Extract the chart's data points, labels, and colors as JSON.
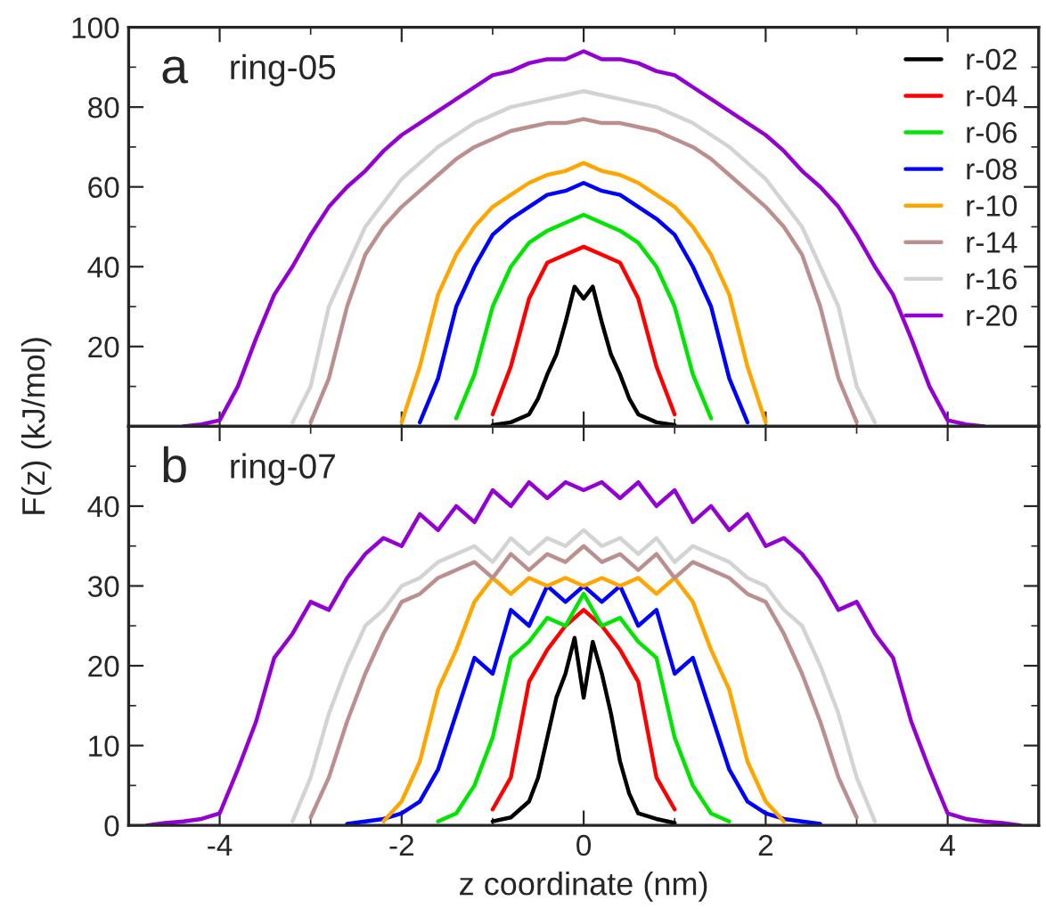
{
  "chart_data": [
    {
      "type": "line",
      "annotations": [
        "a",
        "ring-05"
      ],
      "ylabel": "F(z) (kJ/mol)",
      "legend": "top right",
      "tick_labels": "y",
      "grid": false,
      "xlim": [
        -5,
        5
      ],
      "ylim": [
        0,
        100
      ],
      "xticks": [
        -4,
        {
          "value": -3,
          "label": null
        },
        -2,
        {
          "value": -1,
          "label": null
        },
        0,
        {
          "value": 1,
          "label": null
        },
        2,
        {
          "value": 3,
          "label": null
        },
        4
      ],
      "yticks": [
        {
          "value": 10,
          "label": null
        },
        20,
        {
          "value": 30,
          "label": null
        },
        40,
        {
          "value": 50,
          "label": null
        },
        60,
        {
          "value": 70,
          "label": null
        },
        80,
        {
          "value": 90,
          "label": null
        },
        100
      ],
      "x": [
        -4.4,
        -4.2,
        -4.0,
        -3.8,
        -3.6,
        -3.4,
        -3.2,
        -3.0,
        -2.8,
        -2.6,
        -2.4,
        -2.2,
        -2.0,
        -1.8,
        -1.6,
        -1.4,
        -1.2,
        -1.0,
        -0.8,
        -0.6,
        -0.4,
        -0.2,
        0,
        0.2,
        0.4,
        0.6,
        0.8,
        1.0,
        1.2,
        1.4,
        1.6,
        1.8,
        2.0,
        2.2,
        2.4,
        2.6,
        2.8,
        3.0,
        3.2,
        3.4,
        3.6,
        3.8,
        4.0,
        4.2,
        4.4
      ],
      "series": [
        {
          "name": "r-02",
          "color": "#000000",
          "x": [
            -1.0,
            -0.8,
            -0.6,
            -0.5,
            -0.4,
            -0.3,
            -0.2,
            -0.1,
            0,
            0.1,
            0.2,
            0.3,
            0.4,
            0.5,
            0.6,
            0.8,
            1.0
          ],
          "values": [
            0.3,
            1,
            3,
            7,
            13,
            18,
            26,
            35,
            32,
            35,
            26,
            18,
            13,
            7,
            3,
            1,
            0.3
          ]
        },
        {
          "name": "r-04",
          "color": "#ff0000",
          "values": [
            null,
            null,
            null,
            null,
            null,
            null,
            null,
            null,
            null,
            null,
            null,
            null,
            null,
            null,
            null,
            null,
            null,
            3,
            15,
            32,
            41,
            43,
            45,
            43,
            41,
            32,
            15,
            3,
            null,
            null,
            null,
            null,
            null,
            null,
            null,
            null,
            null,
            null,
            null,
            null,
            null,
            null,
            null,
            null,
            null
          ]
        },
        {
          "name": "r-06",
          "color": "#00e600",
          "values": [
            null,
            null,
            null,
            null,
            null,
            null,
            null,
            null,
            null,
            null,
            null,
            null,
            null,
            null,
            null,
            2,
            13,
            30,
            40,
            46,
            49,
            51,
            53,
            51,
            49,
            46,
            40,
            30,
            13,
            2,
            null,
            null,
            null,
            null,
            null,
            null,
            null,
            null,
            null,
            null,
            null,
            null,
            null,
            null,
            null
          ]
        },
        {
          "name": "r-08",
          "color": "#0000ff",
          "values": [
            null,
            null,
            null,
            null,
            null,
            null,
            null,
            null,
            null,
            null,
            null,
            null,
            null,
            1,
            12,
            30,
            40,
            48,
            52,
            55,
            58,
            59,
            61,
            59,
            58,
            55,
            52,
            48,
            40,
            30,
            12,
            1,
            null,
            null,
            null,
            null,
            null,
            null,
            null,
            null,
            null,
            null,
            null,
            null,
            null
          ]
        },
        {
          "name": "r-10",
          "color": "#ffa500",
          "values": [
            null,
            null,
            null,
            null,
            null,
            null,
            null,
            null,
            null,
            null,
            null,
            null,
            1,
            15,
            33,
            43,
            50,
            55,
            58,
            61,
            63,
            64,
            66,
            64,
            63,
            61,
            58,
            55,
            50,
            43,
            33,
            15,
            1,
            null,
            null,
            null,
            null,
            null,
            null,
            null,
            null,
            null,
            null,
            null,
            null
          ]
        },
        {
          "name": "r-14",
          "color": "#bc8f8f",
          "values": [
            null,
            null,
            null,
            null,
            null,
            null,
            null,
            1,
            12,
            30,
            43,
            50,
            55,
            59,
            63,
            67,
            70,
            72,
            74,
            75,
            76,
            76,
            77,
            76,
            76,
            75,
            74,
            72,
            70,
            67,
            63,
            59,
            55,
            50,
            43,
            30,
            12,
            1,
            null,
            null,
            null,
            null,
            null,
            null,
            null
          ]
        },
        {
          "name": "r-16",
          "color": "#d3d3d3",
          "values": [
            null,
            null,
            null,
            null,
            null,
            null,
            1,
            10,
            30,
            40,
            50,
            56,
            62,
            66,
            70,
            73,
            76,
            78,
            80,
            81,
            82,
            83,
            84,
            83,
            82,
            81,
            80,
            78,
            76,
            73,
            70,
            66,
            62,
            56,
            50,
            40,
            30,
            10,
            1,
            null,
            null,
            null,
            null,
            null,
            null
          ]
        },
        {
          "name": "r-20",
          "color": "#9400d3",
          "values": [
            0,
            0.5,
            1.5,
            10,
            22,
            33,
            40,
            48,
            55,
            60,
            64,
            69,
            73,
            76,
            79,
            82,
            85,
            88,
            89,
            91,
            92,
            92,
            94,
            92,
            92,
            91,
            89,
            88,
            85,
            82,
            79,
            76,
            73,
            69,
            64,
            60,
            55,
            48,
            40,
            33,
            22,
            10,
            1.5,
            0.5,
            0
          ]
        }
      ]
    },
    {
      "type": "line",
      "annotations": [
        "b",
        "ring-07"
      ],
      "xlabel": "z coordinate (nm)",
      "grid": false,
      "xlim": [
        -5,
        5
      ],
      "ylim": [
        0,
        50
      ],
      "xticks": [
        -4,
        {
          "value": -3,
          "label": null
        },
        -2,
        {
          "value": -1,
          "label": null
        },
        0,
        {
          "value": 1,
          "label": null
        },
        2,
        {
          "value": 3,
          "label": null
        },
        4
      ],
      "yticks": [
        0,
        {
          "value": 5,
          "label": null
        },
        10,
        {
          "value": 15,
          "label": null
        },
        20,
        {
          "value": 25,
          "label": null
        },
        30,
        {
          "value": 35,
          "label": null
        },
        40,
        {
          "value": 45,
          "label": null
        }
      ],
      "x": [
        -4.8,
        -4.6,
        -4.4,
        -4.2,
        -4.0,
        -3.8,
        -3.6,
        -3.4,
        -3.2,
        -3.0,
        -2.8,
        -2.6,
        -2.4,
        -2.2,
        -2.0,
        -1.8,
        -1.6,
        -1.4,
        -1.2,
        -1.0,
        -0.8,
        -0.6,
        -0.4,
        -0.2,
        0,
        0.2,
        0.4,
        0.6,
        0.8,
        1.0,
        1.2,
        1.4,
        1.6,
        1.8,
        2.0,
        2.2,
        2.4,
        2.6,
        2.8,
        3.0,
        3.2,
        3.4,
        3.6,
        3.8,
        4.0,
        4.2,
        4.4,
        4.6,
        4.8
      ],
      "series": [
        {
          "color": "#000000",
          "x": [
            -1.0,
            -0.8,
            -0.6,
            -0.5,
            -0.4,
            -0.3,
            -0.2,
            -0.1,
            0,
            0.1,
            0.2,
            0.3,
            0.4,
            0.5,
            0.6,
            0.8,
            1.0
          ],
          "values": [
            0.5,
            1,
            3,
            6,
            11,
            16,
            19,
            23.5,
            16,
            23,
            19,
            14,
            8,
            4,
            1.5,
            0.8,
            0.3
          ]
        },
        {
          "color": "#ff0000",
          "values": [
            null,
            null,
            null,
            null,
            null,
            null,
            null,
            null,
            null,
            null,
            null,
            null,
            null,
            null,
            null,
            null,
            null,
            null,
            null,
            2,
            6,
            18,
            22,
            25,
            27,
            25,
            22,
            18,
            6,
            2,
            null,
            null,
            null,
            null,
            null,
            null,
            null,
            null,
            null,
            null,
            null,
            null,
            null,
            null,
            null,
            null,
            null,
            null,
            null
          ]
        },
        {
          "color": "#00e600",
          "values": [
            null,
            null,
            null,
            null,
            null,
            null,
            null,
            null,
            null,
            null,
            null,
            null,
            null,
            null,
            null,
            null,
            0.5,
            1.5,
            5,
            11,
            21,
            23,
            26,
            25,
            29,
            25,
            26,
            23,
            21,
            11,
            5,
            1.5,
            0.5,
            null,
            null,
            null,
            null,
            null,
            null,
            null,
            null,
            null,
            null,
            null,
            null,
            null,
            null,
            null,
            null
          ]
        },
        {
          "color": "#0000ff",
          "values": [
            null,
            null,
            null,
            null,
            null,
            null,
            null,
            null,
            null,
            null,
            null,
            0.2,
            0.5,
            0.8,
            1.5,
            3,
            7,
            14,
            21,
            19,
            27,
            25,
            30,
            28,
            30,
            28,
            30,
            25,
            27,
            19,
            21,
            14,
            7,
            3,
            1.5,
            0.8,
            0.5,
            0.2,
            null,
            null,
            null,
            null,
            null,
            null,
            null,
            null,
            null,
            null,
            null
          ]
        },
        {
          "color": "#ffa500",
          "values": [
            null,
            null,
            null,
            null,
            null,
            null,
            null,
            null,
            null,
            null,
            null,
            null,
            null,
            0.5,
            3,
            8,
            17,
            22,
            28,
            31,
            29,
            31,
            30,
            31,
            30,
            31,
            30,
            31,
            29,
            31,
            28,
            22,
            17,
            8,
            3,
            0.5,
            null,
            null,
            null,
            null,
            null,
            null,
            null,
            null,
            null,
            null,
            null,
            null,
            null
          ]
        },
        {
          "color": "#bc8f8f",
          "values": [
            null,
            null,
            null,
            null,
            null,
            null,
            null,
            null,
            null,
            1,
            6,
            13,
            19,
            24,
            28,
            29,
            31,
            32,
            33,
            31,
            34,
            32,
            34,
            33,
            35,
            33,
            34,
            32,
            34,
            31,
            33,
            32,
            31,
            29,
            28,
            24,
            19,
            13,
            6,
            1,
            null,
            null,
            null,
            null,
            null,
            null,
            null,
            null,
            null
          ]
        },
        {
          "color": "#d3d3d3",
          "values": [
            null,
            null,
            null,
            null,
            null,
            null,
            null,
            null,
            0.5,
            6,
            14,
            20,
            25,
            27,
            30,
            31,
            33,
            34,
            35,
            33,
            36,
            34,
            36,
            35,
            37,
            35,
            36,
            34,
            36,
            33,
            35,
            34,
            33,
            31,
            30,
            27,
            25,
            20,
            14,
            6,
            0.5,
            null,
            null,
            null,
            null,
            null,
            null,
            null,
            null
          ]
        },
        {
          "color": "#9400d3",
          "values": [
            0,
            0.3,
            0.5,
            0.8,
            1.5,
            7,
            13,
            21,
            24,
            28,
            27,
            31,
            34,
            36,
            35,
            39,
            37,
            40,
            38,
            42,
            40,
            43,
            41,
            43,
            42,
            43,
            41,
            43,
            40,
            42,
            38,
            40,
            37,
            39,
            35,
            36,
            34,
            31,
            27,
            28,
            24,
            21,
            13,
            7,
            1.5,
            0.8,
            0.5,
            0.3,
            0
          ]
        }
      ]
    }
  ]
}
